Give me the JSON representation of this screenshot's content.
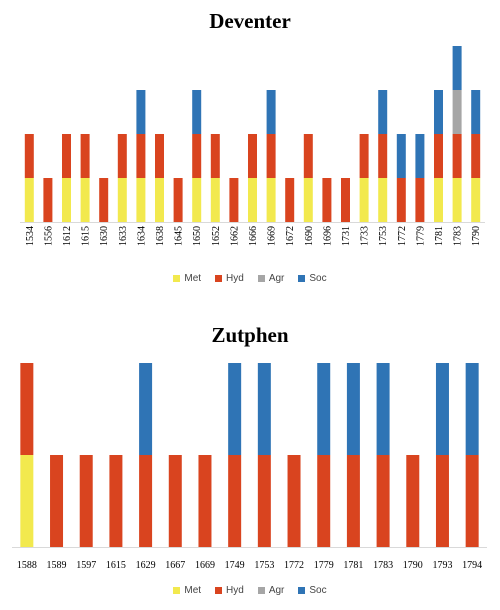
{
  "colors": {
    "Met": "#F2E94E",
    "Hyd": "#D9441F",
    "Agr": "#A6A6A6",
    "Soc": "#2F74B5"
  },
  "legend": [
    "Met",
    "Hyd",
    "Agr",
    "Soc"
  ],
  "chart_data": [
    {
      "type": "bar",
      "stacked": true,
      "title": "Deventer",
      "xlabel": "",
      "ylabel": "",
      "ylim": [
        0,
        4
      ],
      "grid": false,
      "legend_position": "bottom",
      "categories": [
        "1534",
        "1556",
        "1612",
        "1615",
        "1630",
        "1633",
        "1634",
        "1638",
        "1645",
        "1650",
        "1652",
        "1662",
        "1666",
        "1669",
        "1672",
        "1690",
        "1696",
        "1731",
        "1733",
        "1753",
        "1772",
        "1779",
        "1781",
        "1783",
        "1790"
      ],
      "series": [
        {
          "name": "Met",
          "values": [
            1,
            0,
            1,
            1,
            0,
            1,
            1,
            1,
            0,
            1,
            1,
            0,
            1,
            1,
            0,
            1,
            0,
            0,
            1,
            1,
            0,
            0,
            1,
            1,
            1
          ]
        },
        {
          "name": "Hyd",
          "values": [
            1,
            1,
            1,
            1,
            1,
            1,
            1,
            1,
            1,
            1,
            1,
            1,
            1,
            1,
            1,
            1,
            1,
            1,
            1,
            1,
            1,
            1,
            1,
            1,
            1
          ]
        },
        {
          "name": "Agr",
          "values": [
            0,
            0,
            0,
            0,
            0,
            0,
            0,
            0,
            0,
            0,
            0,
            0,
            0,
            0,
            0,
            0,
            0,
            0,
            0,
            0,
            0,
            0,
            0,
            1,
            0
          ]
        },
        {
          "name": "Soc",
          "values": [
            0,
            0,
            0,
            0,
            0,
            0,
            1,
            0,
            0,
            1,
            0,
            0,
            0,
            1,
            0,
            0,
            0,
            0,
            0,
            1,
            1,
            1,
            1,
            1,
            1
          ]
        }
      ]
    },
    {
      "type": "bar",
      "stacked": true,
      "title": "Zutphen",
      "xlabel": "",
      "ylabel": "",
      "ylim": [
        0,
        2
      ],
      "grid": false,
      "legend_position": "bottom",
      "categories": [
        "1588",
        "1589",
        "1597",
        "1615",
        "1629",
        "1667",
        "1669",
        "1749",
        "1753",
        "1772",
        "1779",
        "1781",
        "1783",
        "1790",
        "1793",
        "1794"
      ],
      "series": [
        {
          "name": "Met",
          "values": [
            1,
            0,
            0,
            0,
            0,
            0,
            0,
            0,
            0,
            0,
            0,
            0,
            0,
            0,
            0,
            0
          ]
        },
        {
          "name": "Hyd",
          "values": [
            1,
            1,
            1,
            1,
            1,
            1,
            1,
            1,
            1,
            1,
            1,
            1,
            1,
            1,
            1,
            1
          ]
        },
        {
          "name": "Agr",
          "values": [
            0,
            0,
            0,
            0,
            0,
            0,
            0,
            0,
            0,
            0,
            0,
            0,
            0,
            0,
            0,
            0
          ]
        },
        {
          "name": "Soc",
          "values": [
            0,
            0,
            0,
            0,
            1,
            0,
            0,
            1,
            1,
            0,
            1,
            1,
            1,
            0,
            1,
            1
          ]
        }
      ]
    }
  ]
}
